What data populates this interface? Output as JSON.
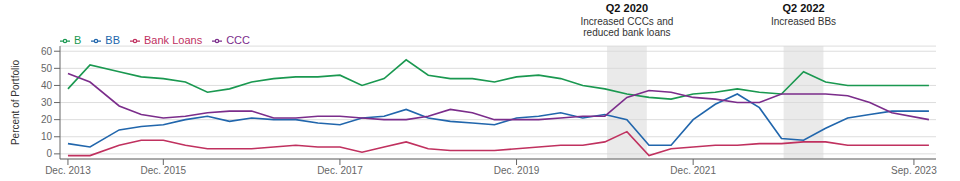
{
  "chart_data": {
    "type": "line",
    "ylabel": "Percent of Portfolio",
    "x": [
      2013.92,
      2014.17,
      2014.5,
      2014.75,
      2015.0,
      2015.25,
      2015.5,
      2015.75,
      2016.0,
      2016.25,
      2016.5,
      2016.75,
      2017.0,
      2017.25,
      2017.5,
      2017.75,
      2018.0,
      2018.25,
      2018.5,
      2018.75,
      2019.0,
      2019.25,
      2019.5,
      2019.75,
      2020.0,
      2020.25,
      2020.5,
      2020.75,
      2021.0,
      2021.25,
      2021.5,
      2021.75,
      2022.0,
      2022.25,
      2022.5,
      2022.75,
      2023.0,
      2023.25,
      2023.67
    ],
    "series": [
      {
        "name": "BB",
        "color": "#2166ac",
        "values": [
          6,
          4,
          14,
          16,
          17,
          20,
          22,
          19,
          21,
          20,
          20,
          18,
          17,
          21,
          22,
          26,
          21,
          19,
          18,
          17,
          21,
          22,
          24,
          21,
          23,
          20,
          5,
          5,
          20,
          29,
          35,
          27,
          9,
          8,
          15,
          21,
          23,
          25,
          25
        ]
      },
      {
        "name": "B",
        "color": "#1a9850",
        "values": [
          38,
          52,
          48,
          45,
          44,
          42,
          36,
          38,
          42,
          44,
          45,
          45,
          46,
          40,
          44,
          55,
          46,
          44,
          44,
          42,
          45,
          46,
          44,
          40,
          38,
          35,
          33,
          32,
          35,
          36,
          38,
          36,
          35,
          48,
          42,
          40,
          40,
          40,
          40
        ]
      },
      {
        "name": "CCC",
        "color": "#7b2d8b",
        "values": [
          47,
          42,
          28,
          23,
          21,
          22,
          24,
          25,
          25,
          21,
          21,
          22,
          22,
          21,
          20,
          20,
          22,
          26,
          24,
          20,
          20,
          20,
          21,
          22,
          22,
          33,
          37,
          36,
          33,
          32,
          30,
          30,
          35,
          35,
          35,
          34,
          30,
          24,
          20
        ]
      },
      {
        "name": "Bank Loans",
        "color": "#c0315f",
        "values": [
          -1,
          -1,
          5,
          8,
          8,
          5,
          3,
          3,
          3,
          4,
          5,
          4,
          4,
          1,
          4,
          7,
          3,
          2,
          2,
          2,
          3,
          4,
          5,
          5,
          7,
          13,
          -1,
          3,
          4,
          5,
          5,
          6,
          6,
          7,
          7,
          5,
          5,
          5,
          5
        ]
      }
    ],
    "xlim": [
      2013.83,
      2023.75
    ],
    "xticks": [
      {
        "value": 2013.92,
        "label": "Dec. 2013"
      },
      {
        "value": 2015.0,
        "label": "Dec. 2015"
      },
      {
        "value": 2017.0,
        "label": "Dec. 2017"
      },
      {
        "value": 2019.0,
        "label": "Dec. 2019"
      },
      {
        "value": 2021.0,
        "label": "Dec. 2021"
      },
      {
        "value": 2023.5,
        "label": "Sep. 2023"
      }
    ],
    "ylim": [
      -3,
      63
    ],
    "yticks": [
      0,
      10,
      20,
      30,
      40,
      50,
      60
    ],
    "grid": true,
    "legend": "top-left",
    "annotations": [
      {
        "title": "Q2 2020",
        "text": "Increased CCCs and\nreduced bank loans",
        "x_range": [
          2020.025,
          2020.475
        ],
        "color": "#d8d8d8"
      },
      {
        "title": "Q2 2022",
        "text": "Increased BBs",
        "x_range": [
          2022.025,
          2022.475
        ],
        "color": "#d8d8d8"
      }
    ]
  }
}
